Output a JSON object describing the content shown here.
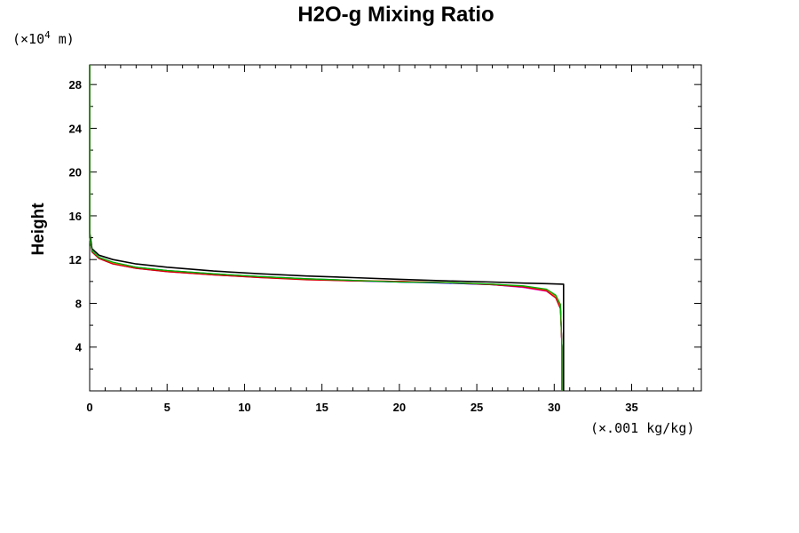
{
  "chart_data": {
    "type": "line",
    "title": "H2O-g Mixing Ratio",
    "ylabel": "Height",
    "y_unit_prefix": "(×10",
    "y_unit_exp": "4",
    "y_unit_suffix": " m)",
    "x_unit": "(×.001 kg/kg)",
    "xlim": [
      0,
      39.5
    ],
    "ylim": [
      0,
      29.8
    ],
    "x_ticks": [
      0,
      5,
      10,
      15,
      20,
      25,
      30,
      35
    ],
    "y_ticks": [
      4,
      8,
      12,
      16,
      20,
      24,
      28
    ],
    "grid": false,
    "legend": "none",
    "series": [
      {
        "color": "#000000",
        "x": [
          0,
          0,
          0.15,
          0.6,
          1.5,
          3,
          5,
          8,
          11,
          14,
          17,
          20,
          23,
          26,
          28,
          29.5,
          30.6,
          30.6,
          30.6
        ],
        "y": [
          29.8,
          14.5,
          13.0,
          12.4,
          12.0,
          11.6,
          11.3,
          10.95,
          10.7,
          10.5,
          10.35,
          10.2,
          10.05,
          9.95,
          9.85,
          9.8,
          9.75,
          5,
          0
        ]
      },
      {
        "color": "#ff00ff",
        "x": [
          0,
          0,
          0.15,
          0.6,
          1.5,
          3,
          5,
          8,
          11,
          14,
          17,
          20,
          23,
          26,
          28,
          29.5,
          30.1,
          30.4,
          30.5,
          30.5
        ],
        "y": [
          29.8,
          14.0,
          12.7,
          12.1,
          11.6,
          11.2,
          10.9,
          10.6,
          10.35,
          10.2,
          10.1,
          10.0,
          9.85,
          9.7,
          9.45,
          9.1,
          8.5,
          7.5,
          4,
          0
        ]
      },
      {
        "color": "#008080",
        "x": [
          0,
          0,
          0.15,
          0.6,
          1.5,
          3,
          5,
          8,
          11,
          14,
          17,
          20,
          23,
          26,
          28,
          29.5,
          30.1,
          30.4,
          30.5,
          30.5
        ],
        "y": [
          29.8,
          14.0,
          12.8,
          12.2,
          11.75,
          11.3,
          11.0,
          10.7,
          10.45,
          10.25,
          10.1,
          9.95,
          9.9,
          9.75,
          9.55,
          9.25,
          8.7,
          7.8,
          4,
          0
        ]
      },
      {
        "color": "#0000ff",
        "x": [
          0,
          0,
          0.15,
          0.6,
          1.5,
          3,
          5,
          8,
          11,
          14,
          17,
          20,
          23,
          26,
          28,
          29.5,
          30.1,
          30.4,
          30.5,
          30.5
        ],
        "y": [
          29.8,
          14.0,
          12.75,
          12.15,
          11.7,
          11.25,
          10.95,
          10.65,
          10.4,
          10.2,
          10.05,
          9.95,
          9.85,
          9.7,
          9.5,
          9.2,
          8.6,
          7.6,
          4,
          0
        ]
      },
      {
        "color": "#ff8c00",
        "x": [
          0,
          0,
          0.15,
          0.6,
          1.5,
          3,
          5,
          8,
          11,
          14,
          17,
          20,
          23,
          26,
          28,
          29.5,
          30.1,
          30.4,
          30.5,
          30.5
        ],
        "y": [
          29.8,
          14.0,
          12.75,
          12.15,
          11.7,
          11.25,
          10.95,
          10.65,
          10.4,
          10.2,
          10.1,
          10.0,
          9.9,
          9.75,
          9.55,
          9.2,
          8.6,
          7.6,
          4,
          0
        ]
      },
      {
        "color": "#d00000",
        "x": [
          0,
          0,
          0.15,
          0.6,
          1.5,
          3,
          5,
          8,
          11,
          14,
          17,
          20,
          23,
          26,
          28,
          29.5,
          30.1,
          30.4,
          30.5,
          30.5
        ],
        "y": [
          29.8,
          14.0,
          12.7,
          12.1,
          11.6,
          11.2,
          10.9,
          10.6,
          10.35,
          10.15,
          10.05,
          10.0,
          9.9,
          9.7,
          9.5,
          9.15,
          8.5,
          7.5,
          4,
          0
        ]
      },
      {
        "color": "#00b000",
        "x": [
          0,
          0,
          0.15,
          0.6,
          1.5,
          3,
          5,
          8,
          11,
          14,
          17,
          20,
          23,
          26,
          28,
          29.5,
          30.1,
          30.4,
          30.5,
          30.5
        ],
        "y": [
          29.8,
          14.0,
          12.8,
          12.2,
          11.75,
          11.3,
          11.0,
          10.7,
          10.45,
          10.25,
          10.1,
          9.95,
          9.9,
          9.75,
          9.6,
          9.3,
          8.75,
          7.9,
          4,
          0
        ]
      }
    ]
  }
}
